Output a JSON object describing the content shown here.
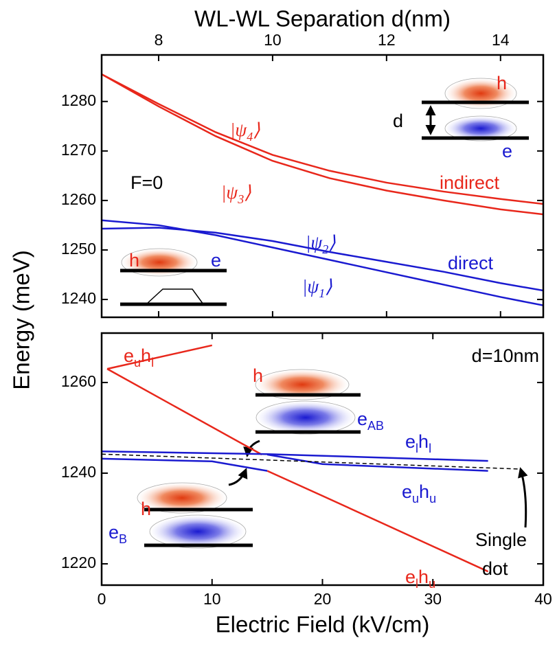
{
  "chart_data": [
    {
      "type": "line",
      "xlabel": "WL-WL Separation d(nm)",
      "ylabel": "Energy (meV)",
      "xlim": [
        7,
        14.75
      ],
      "xticks": [
        8,
        10,
        12,
        14
      ],
      "ylim": [
        1236.4,
        1289.4
      ],
      "yticks": [
        1240,
        1250,
        1260,
        1270,
        1280
      ],
      "series": [
        {
          "color": "#e8271b",
          "x": [
            7,
            8,
            9,
            10,
            11,
            12,
            13,
            14,
            14.75
          ],
          "values": [
            1285.5,
            1279.5,
            1273.8,
            1269.2,
            1266,
            1263.6,
            1261.8,
            1260.3,
            1259.3
          ]
        },
        {
          "color": "#e8271b",
          "x": [
            7,
            8,
            9,
            10,
            11,
            12,
            13,
            14,
            14.75
          ],
          "values": [
            1285.5,
            1279,
            1273,
            1268,
            1264.5,
            1262,
            1260,
            1258.2,
            1257.2
          ]
        },
        {
          "color": "#1a1ad0",
          "x": [
            7,
            8,
            9,
            10,
            11,
            12,
            13,
            14,
            14.75
          ],
          "values": [
            1256,
            1255,
            1253,
            1250.5,
            1248,
            1245.5,
            1243,
            1240.5,
            1238.8
          ]
        },
        {
          "color": "#1a1ad0",
          "x": [
            7,
            8,
            9,
            10,
            11,
            12,
            13,
            14,
            14.75
          ],
          "values": [
            1254.3,
            1254.5,
            1253.5,
            1251.8,
            1249.6,
            1247.6,
            1245.6,
            1243.3,
            1241.8
          ]
        }
      ],
      "annotations": [
        {
          "parts": [
            "|ψ",
            "4",
            "⟩"
          ],
          "color": "#e8271b",
          "italic": true
        },
        {
          "parts": [
            "|ψ",
            "3",
            "⟩"
          ],
          "color": "#e8271b",
          "italic": true
        },
        {
          "parts": [
            "|ψ",
            "2",
            "⟩"
          ],
          "color": "#1a1ad0",
          "italic": true
        },
        {
          "parts": [
            "|ψ",
            "1",
            "⟩"
          ],
          "color": "#1a1ad0",
          "italic": true
        },
        {
          "parts": [
            "indirect"
          ],
          "color": "#e8271b"
        },
        {
          "parts": [
            "direct"
          ],
          "color": "#1a1ad0"
        },
        {
          "parts": [
            "F=0"
          ],
          "color": "#000000"
        },
        {
          "parts": [
            "h"
          ],
          "color": "#e8271b"
        },
        {
          "parts": [
            "d"
          ],
          "color": "#000000"
        },
        {
          "parts": [
            "e"
          ],
          "color": "#1a1ad0"
        },
        {
          "parts": [
            "h"
          ],
          "color": "#e8271b"
        },
        {
          "parts": [
            "e"
          ],
          "color": "#1a1ad0"
        }
      ]
    },
    {
      "type": "line",
      "xlabel": "Electric Field (kV/cm)",
      "xlim": [
        0,
        40
      ],
      "xticks": [
        0,
        10,
        20,
        30,
        40
      ],
      "ylim": [
        1215.3,
        1270.9
      ],
      "yticks": [
        1220,
        1240,
        1260
      ],
      "series": [
        {
          "color": "#e8271b",
          "x": [
            0.5,
            10
          ],
          "values": [
            1263.0,
            1268.2
          ]
        },
        {
          "color": "#e8271b",
          "x": [
            0.5,
            14.5
          ],
          "values": [
            1263.0,
            1244.1
          ]
        },
        {
          "color": "#e8271b",
          "x": [
            15,
            20,
            35
          ],
          "values": [
            1240.5,
            1235.0,
            1218.3
          ]
        },
        {
          "color": "#1a1ad0",
          "x": [
            0,
            15,
            35
          ],
          "values": [
            1244.8,
            1244.2,
            1242.7
          ]
        },
        {
          "color": "#1a1ad0",
          "x": [
            0,
            10,
            15
          ],
          "values": [
            1243.2,
            1242.6,
            1240.5
          ]
        },
        {
          "color": "#1a1ad0",
          "x": [
            15,
            20,
            35
          ],
          "values": [
            1244.1,
            1242.0,
            1240.5
          ]
        },
        {
          "color": "#000000",
          "dashed": true,
          "x": [
            0,
            38
          ],
          "values": [
            1244.2,
            1240.9
          ]
        }
      ],
      "annotations": [
        {
          "parts": [
            "e",
            "u",
            "h",
            "l"
          ],
          "color": "#e8271b"
        },
        {
          "parts": [
            "d=10nm"
          ],
          "color": "#000000"
        },
        {
          "parts": [
            "h"
          ],
          "color": "#e8271b"
        },
        {
          "parts": [
            "e",
            "AB"
          ],
          "color": "#1a1ad0"
        },
        {
          "parts": [
            "e",
            "l",
            "h",
            "l"
          ],
          "color": "#1a1ad0"
        },
        {
          "parts": [
            "e",
            "u",
            "h",
            "u"
          ],
          "color": "#1a1ad0"
        },
        {
          "parts": [
            "Single"
          ],
          "color": "#000000"
        },
        {
          "parts": [
            "dot"
          ],
          "color": "#000000"
        },
        {
          "parts": [
            "e",
            "B"
          ],
          "color": "#1a1ad0"
        },
        {
          "parts": [
            "h"
          ],
          "color": "#e8271b"
        },
        {
          "parts": [
            "e",
            "l",
            "h",
            "u"
          ],
          "color": "#e8271b"
        }
      ]
    }
  ]
}
